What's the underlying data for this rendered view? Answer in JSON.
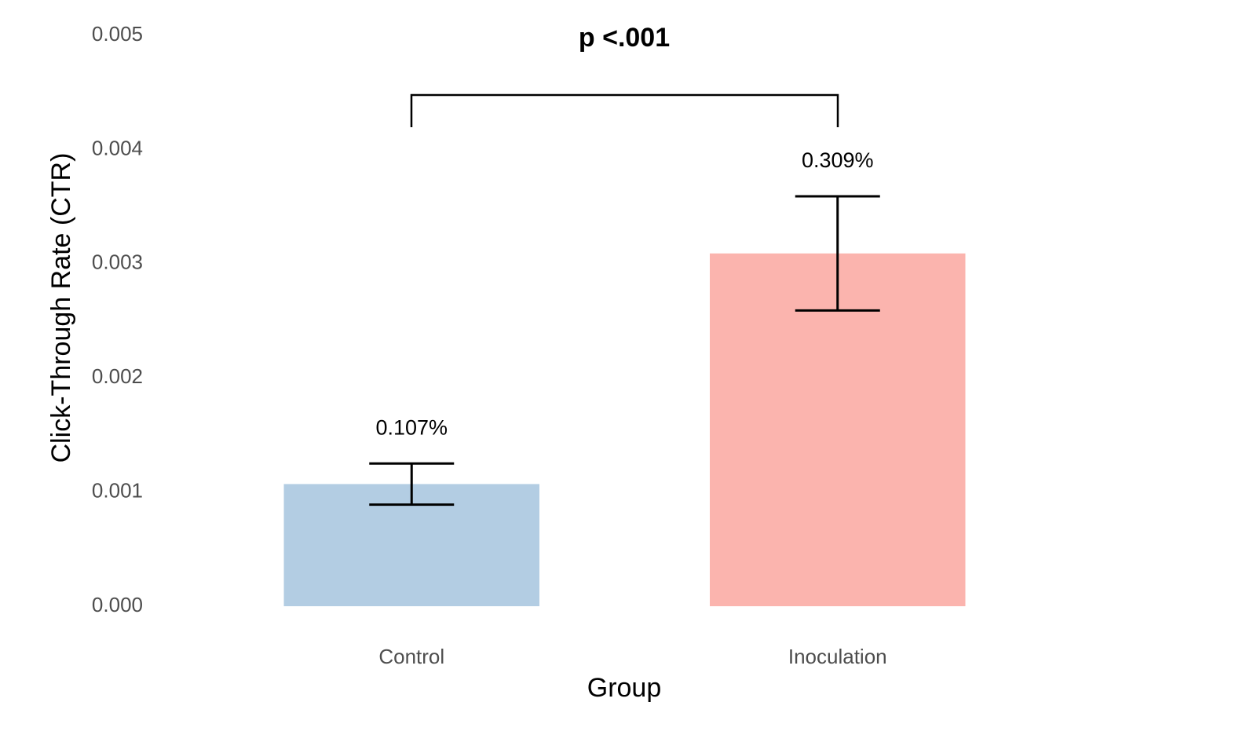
{
  "chart_data": {
    "type": "bar",
    "title": "p <.001",
    "x_label": "Group",
    "y_label": "Click-Through Rate (CTR)",
    "categories": [
      "Control",
      "Inoculation"
    ],
    "values": [
      0.00107,
      0.00309
    ],
    "value_labels": [
      "0.107%",
      "0.309%"
    ],
    "errors": [
      0.00018,
      0.0005
    ],
    "colors": [
      "#b3cde3",
      "#fbb4ae"
    ],
    "ylim": [
      0,
      0.005
    ],
    "yticks": [
      {
        "value": 0,
        "label": "0.000"
      },
      0.001,
      0.002,
      0.003,
      0.004,
      0.005
    ],
    "grid": false
  }
}
